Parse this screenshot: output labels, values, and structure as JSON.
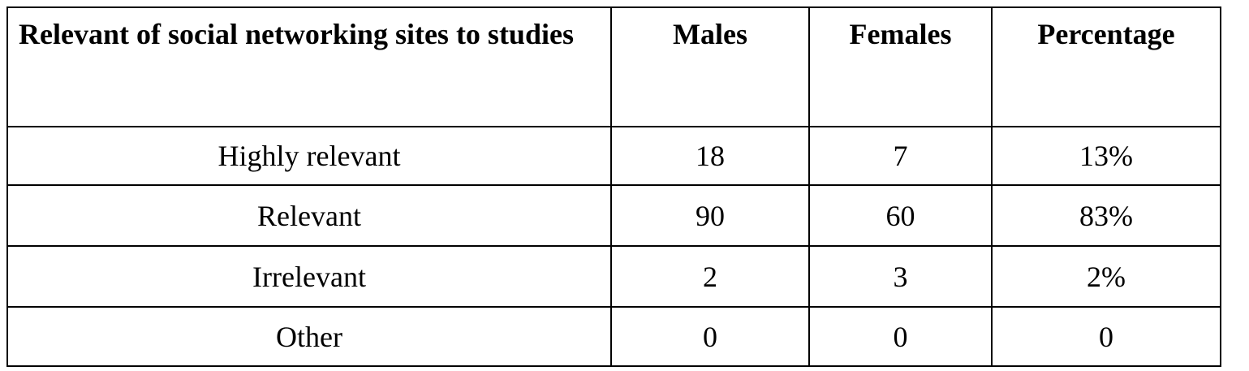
{
  "table": {
    "header": [
      "Relevant of social networking sites to studies",
      "Males",
      "Females",
      "Percentage"
    ],
    "rows": [
      [
        "Highly relevant",
        "18",
        "7",
        "13%"
      ],
      [
        "Relevant",
        "90",
        "60",
        "83%"
      ],
      [
        "Irrelevant",
        "2",
        "3",
        "2%"
      ],
      [
        "Other",
        "0",
        "0",
        "0"
      ]
    ]
  }
}
